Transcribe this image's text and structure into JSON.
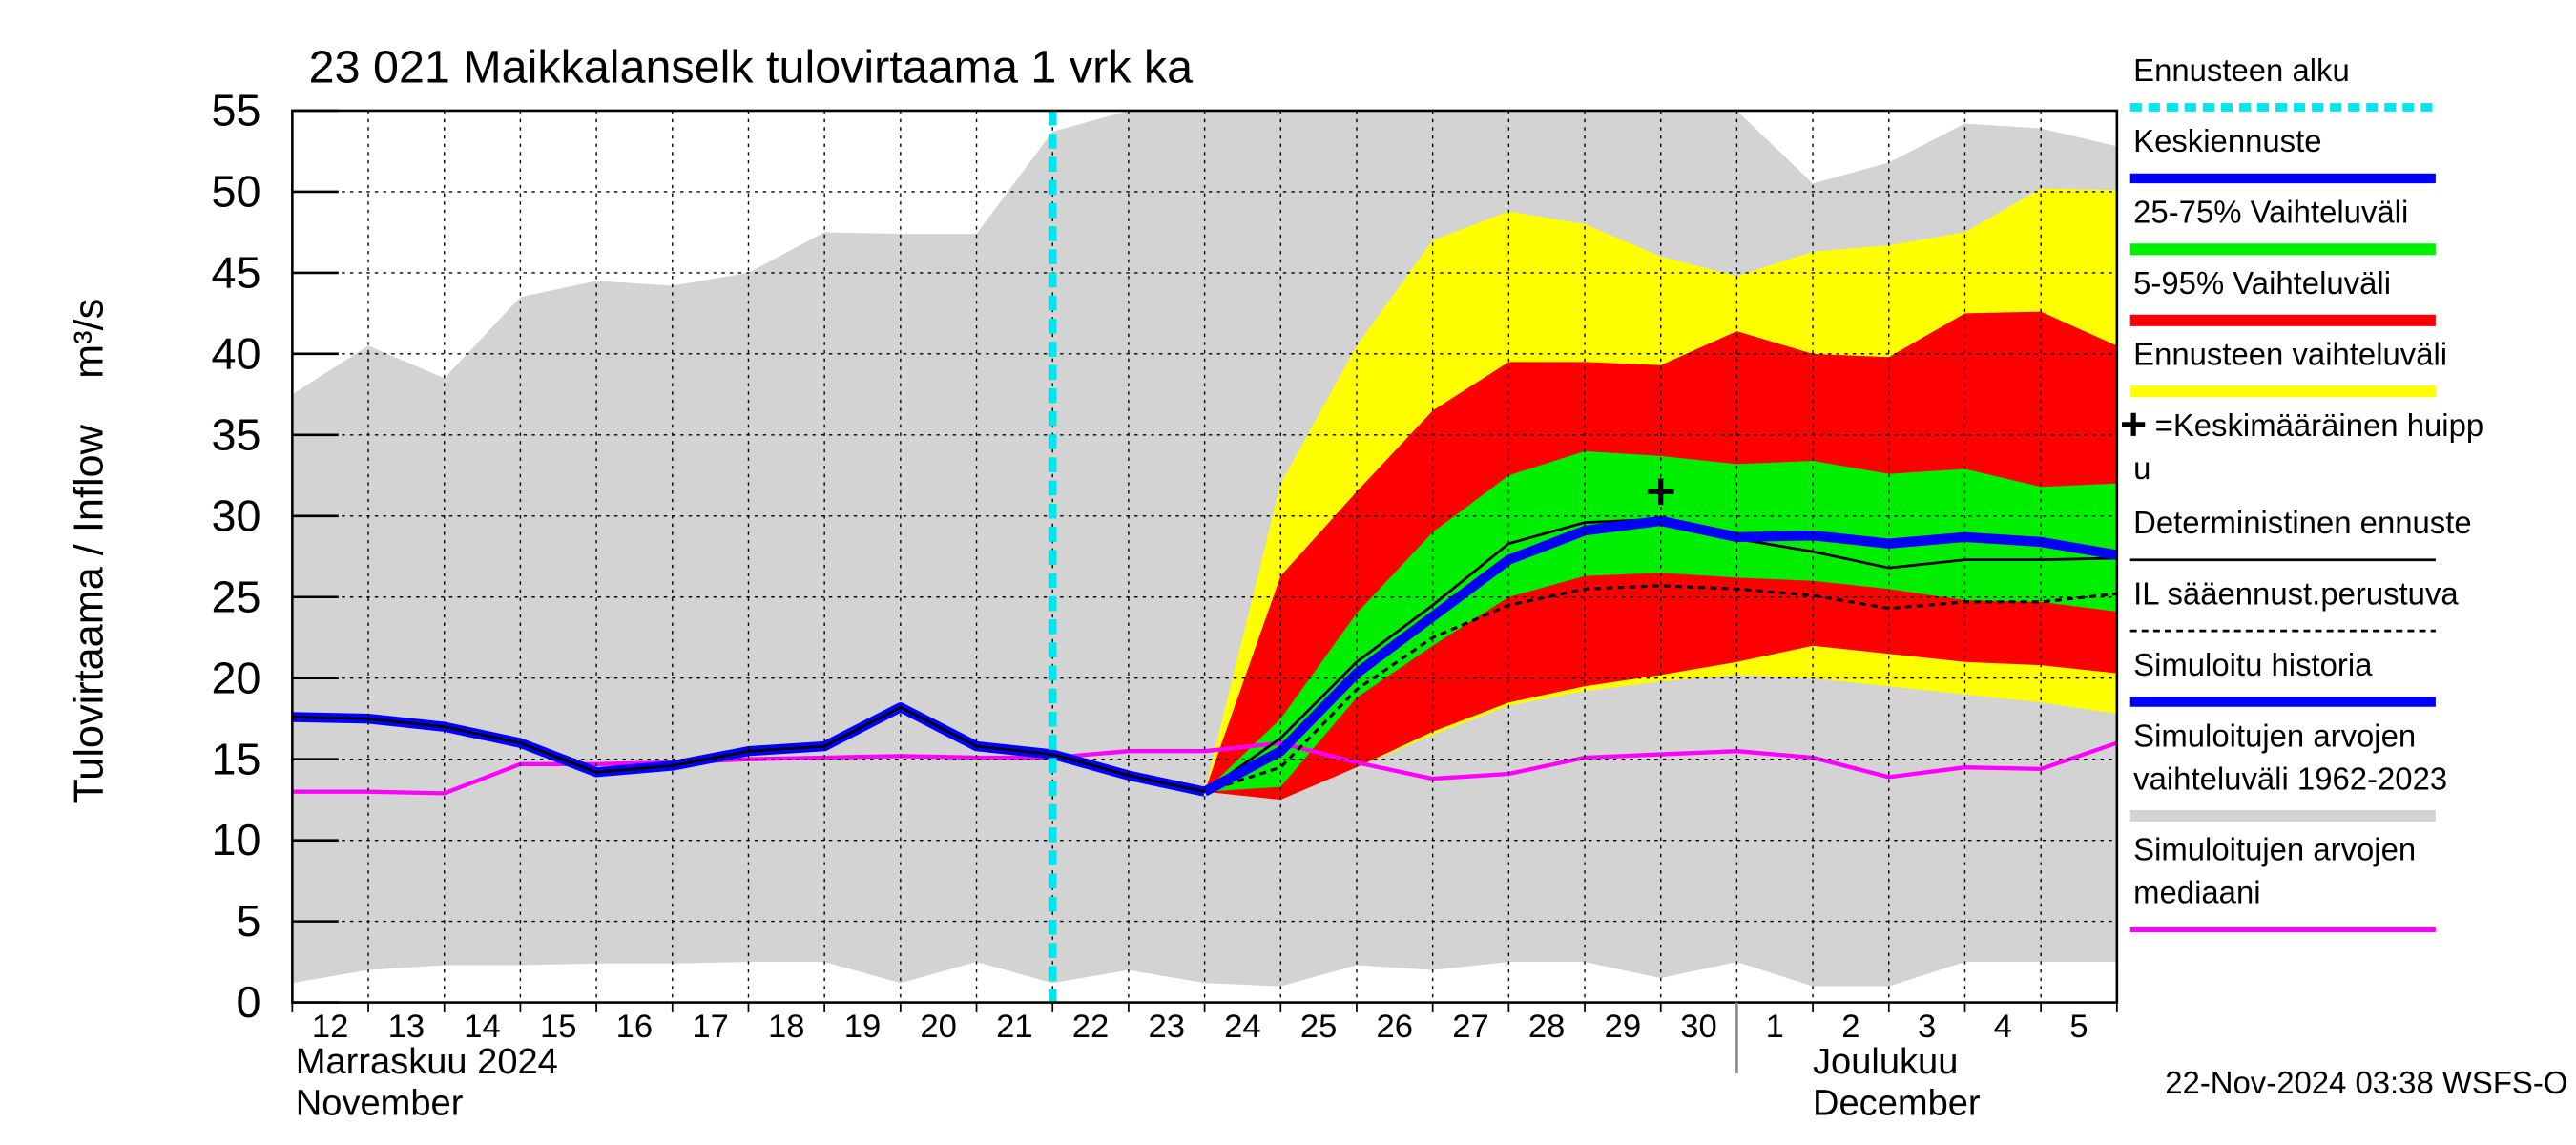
{
  "chart_data": {
    "type": "forecast",
    "title": "23 021 Maikkalanselk tulovirtaama 1 vrk ka",
    "y_label": "Tulovirtaama / Inflow",
    "y_unit": "m³/s",
    "timestamp": "22-Nov-2024 03:38 WSFS-O",
    "x": [
      "12",
      "13",
      "14",
      "15",
      "16",
      "17",
      "18",
      "19",
      "20",
      "21",
      "22",
      "23",
      "24",
      "25",
      "26",
      "27",
      "28",
      "29",
      "30",
      "1",
      "2",
      "3",
      "4",
      "5",
      null
    ],
    "months": [
      {
        "label": [
          "Marraskuu 2024",
          "November"
        ],
        "start": "12"
      },
      {
        "label": [
          "Joulukuu",
          "December"
        ],
        "start": "1"
      }
    ],
    "ylim": [
      0,
      55
    ],
    "yticks": [
      0,
      5,
      10,
      15,
      20,
      25,
      30,
      35,
      40,
      45,
      50,
      55
    ],
    "grid": true,
    "series": [
      {
        "kind": "vline",
        "name": [
          "Ennusteen alku"
        ],
        "color": "#00e5ee",
        "x": "22"
      },
      {
        "kind": "line",
        "name": [
          "Keskiennuste"
        ],
        "color": "#0000ff",
        "line_style": "thick",
        "values": [
          null,
          null,
          null,
          null,
          null,
          null,
          null,
          null,
          null,
          null,
          null,
          null,
          13,
          15.5,
          20.3,
          23.8,
          27.3,
          29.1,
          29.7,
          28.7,
          28.8,
          28.3,
          28.7,
          28.4,
          27.6
        ]
      },
      {
        "kind": "band",
        "name": [
          "25-75% Vaihteluväli"
        ],
        "color": "#00ee00",
        "upper": [
          null,
          null,
          null,
          null,
          null,
          null,
          null,
          null,
          null,
          null,
          null,
          null,
          13,
          17.5,
          24,
          29,
          32.5,
          34,
          33.7,
          33.2,
          33.4,
          32.6,
          32.9,
          31.8,
          32
        ],
        "lower": [
          null,
          null,
          null,
          null,
          null,
          null,
          null,
          null,
          null,
          null,
          null,
          null,
          13,
          13.3,
          18.8,
          22,
          25,
          26.3,
          26.5,
          26.2,
          26,
          25.5,
          24.8,
          24.7,
          24.1
        ]
      },
      {
        "kind": "band",
        "name": [
          "5-95% Vaihteluväli"
        ],
        "color": "#ff0000",
        "upper": [
          null,
          null,
          null,
          null,
          null,
          null,
          null,
          null,
          null,
          null,
          null,
          null,
          13,
          26.3,
          31.5,
          36.5,
          39.5,
          39.5,
          39.3,
          41.4,
          40,
          39.8,
          42.5,
          42.6,
          40.5
        ],
        "lower": [
          null,
          null,
          null,
          null,
          null,
          null,
          null,
          null,
          null,
          null,
          null,
          null,
          13,
          12.5,
          14.5,
          16.7,
          18.5,
          19.5,
          20.2,
          21,
          22,
          21.5,
          21,
          20.8,
          20.3
        ]
      },
      {
        "kind": "band",
        "name": [
          "Ennusteen vaihteluväli"
        ],
        "color": "#ffff00",
        "upper": [
          null,
          null,
          null,
          null,
          null,
          null,
          null,
          null,
          null,
          null,
          null,
          null,
          13,
          32,
          40.5,
          47,
          48.8,
          48,
          46,
          44.8,
          46.3,
          46.7,
          47.5,
          50.2,
          50.1
        ],
        "lower": [
          null,
          null,
          null,
          null,
          null,
          null,
          null,
          null,
          null,
          null,
          null,
          null,
          13,
          12.5,
          14.5,
          16.5,
          18.3,
          19.2,
          19.8,
          20.2,
          20,
          19.5,
          19,
          18.5,
          17.8
        ]
      },
      {
        "kind": "marker",
        "name": [
          "=Keskimääräinen huipp",
          "u"
        ],
        "color": "#000000",
        "x": "30",
        "value": 31.5
      },
      {
        "kind": "line",
        "name": [
          "Deterministinen ennuste"
        ],
        "color": "#000000",
        "line_style": "thin",
        "values": [
          17.6,
          17.5,
          17,
          16,
          14.2,
          14.6,
          15.5,
          15.8,
          18.2,
          15.8,
          15.3,
          14,
          13,
          16.3,
          21,
          24.5,
          28.3,
          29.6,
          29.8,
          28.6,
          27.8,
          26.8,
          27.3,
          27.3,
          27.4
        ]
      },
      {
        "kind": "line",
        "name": [
          "IL sääennust.perustuva"
        ],
        "color": "#000000",
        "line_style": "dashed",
        "values": [
          null,
          null,
          null,
          null,
          null,
          null,
          null,
          null,
          null,
          null,
          null,
          null,
          13,
          14.5,
          19.3,
          22.5,
          24.5,
          25.5,
          25.7,
          25.5,
          25.1,
          24.3,
          24.7,
          24.7,
          25.2
        ]
      },
      {
        "kind": "line",
        "name": [
          "Simuloitu historia"
        ],
        "color": "#0000ff",
        "line_style": "thick",
        "values": [
          17.6,
          17.5,
          17,
          16,
          14.2,
          14.6,
          15.5,
          15.8,
          18.2,
          15.8,
          15.3,
          14,
          13,
          null,
          null,
          null,
          null,
          null,
          null,
          null,
          null,
          null,
          null,
          null,
          null
        ]
      },
      {
        "kind": "band",
        "name": [
          "Simuloitujen arvojen",
          "vaihteluväli 1962-2023"
        ],
        "color": "#d3d3d3",
        "upper": [
          37.5,
          40.5,
          38.5,
          43.5,
          44.5,
          44.2,
          45,
          47.5,
          47.4,
          47.4,
          53.7,
          55,
          55,
          55,
          55,
          55,
          55,
          55,
          55,
          55,
          50.5,
          51.8,
          54.2,
          53.9,
          52.8
        ],
        "lower": [
          1.2,
          2.0,
          2.3,
          2.3,
          2.4,
          2.4,
          2.5,
          2.5,
          1.2,
          2.5,
          1.2,
          2.0,
          1.2,
          1.0,
          2.3,
          2.0,
          2.5,
          2.5,
          1.5,
          2.5,
          1.0,
          1.0,
          2.5,
          2.5,
          2.5
        ]
      },
      {
        "kind": "line",
        "name": [
          "Simuloitujen arvojen",
          "mediaani"
        ],
        "color": "#ff00ff",
        "line_style": "medium",
        "values": [
          13,
          13,
          12.9,
          14.7,
          14.7,
          14.8,
          15,
          15.1,
          15.2,
          15.1,
          15.1,
          15.5,
          15.5,
          16,
          14.8,
          13.8,
          14.1,
          15.1,
          15.3,
          15.5,
          15.1,
          13.9,
          14.5,
          14.4,
          16
        ]
      }
    ]
  }
}
